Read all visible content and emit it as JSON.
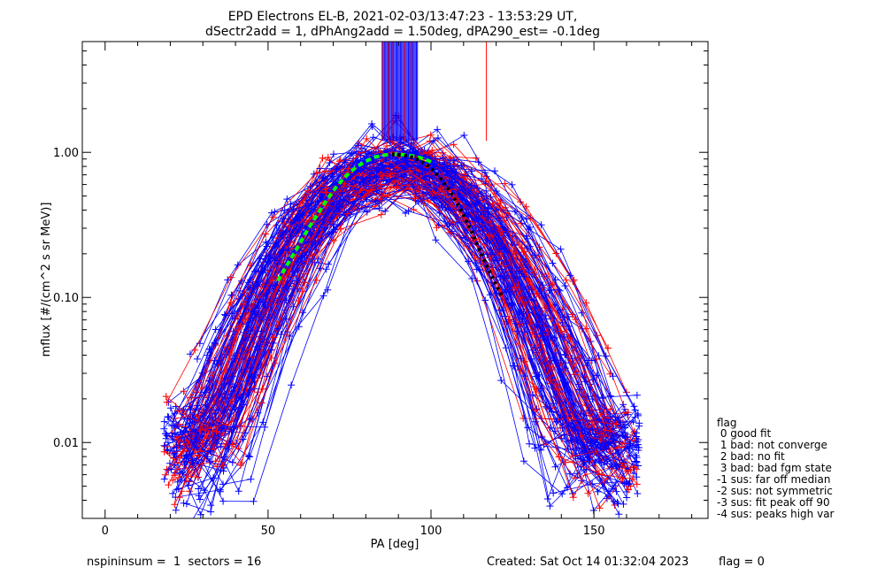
{
  "chart_data": {
    "type": "line",
    "title_line1": "EPD Electrons EL-B, 2021-02-03/13:47:23 - 13:53:29 UT,",
    "title_line2": "dSectr2add = 1, dPhAng2add = 1.50deg, dPA290_est=  -0.1deg",
    "xlabel": "PA [deg]",
    "ylabel": "mflux [#/(cm^2 s sr MeV)]",
    "xlim": [
      -7,
      185
    ],
    "ylim": [
      0.003,
      5.8
    ],
    "yscale": "log",
    "xticks": [
      0,
      50,
      100,
      150
    ],
    "xtick_labels": [
      "0",
      "50",
      "100",
      "150"
    ],
    "yticks": [
      0.01,
      0.1,
      1.0
    ],
    "ytick_labels": [
      "0.01",
      "0.10",
      "1.00"
    ],
    "series_colors": {
      "red": "#ff0000",
      "blue": "#0000ff",
      "fit_green": "#00ff00",
      "fit_black": "#000000"
    },
    "fit_green": {
      "x": [
        53,
        56,
        59,
        62,
        65,
        68,
        71,
        74,
        77,
        80,
        83,
        86,
        89,
        92,
        95,
        98,
        100
      ],
      "y": [
        0.13,
        0.17,
        0.22,
        0.29,
        0.37,
        0.47,
        0.58,
        0.69,
        0.79,
        0.87,
        0.93,
        0.96,
        0.97,
        0.96,
        0.94,
        0.9,
        0.86
      ]
    },
    "fit_black": {
      "x": [
        88,
        91,
        94,
        97,
        100,
        103,
        106,
        109,
        112,
        115,
        118,
        121,
        122
      ],
      "y": [
        0.97,
        0.96,
        0.93,
        0.87,
        0.78,
        0.66,
        0.53,
        0.41,
        0.3,
        0.21,
        0.15,
        0.11,
        0.1
      ]
    },
    "vertical_lines": {
      "blue_range": [
        85,
        96
      ],
      "red": [
        85,
        86,
        87,
        88,
        92,
        94,
        117
      ],
      "ymin": 1.2,
      "ymax": 5.8
    },
    "legend": {
      "title": "flag",
      "entries": [
        " 0 good fit",
        " 1 bad: not converge",
        " 2 bad: no fit",
        " 3 bad: bad fgm state",
        "-1 sus: far off median",
        "-2 sus: not symmetric",
        "-3 sus: fit peak off 90",
        "-4 sus: peaks high var"
      ]
    }
  },
  "footer": {
    "left": "nspininsum =  1  sectors = 16",
    "created": "Created: Sat Oct 14 01:32:04 2023",
    "flag": "flag = 0"
  }
}
